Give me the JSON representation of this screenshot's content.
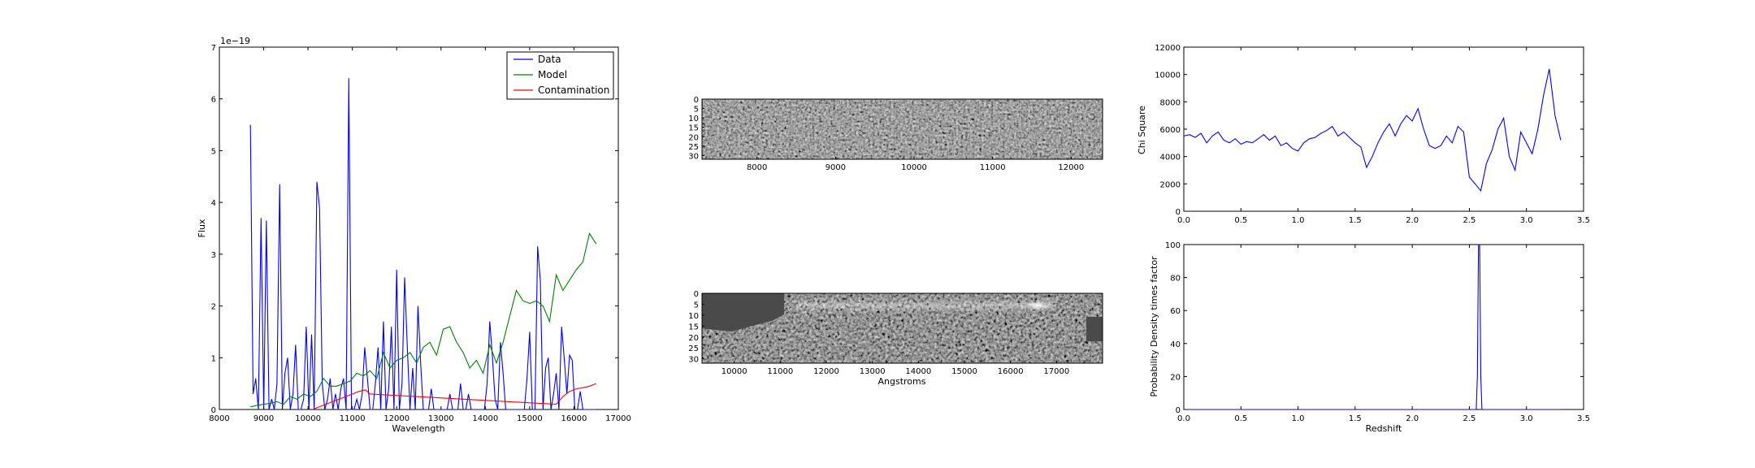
{
  "chart_data": [
    {
      "id": "spectrum",
      "type": "line",
      "xlabel": "Wavelength",
      "ylabel": "Flux",
      "offset_text": "1e−19",
      "xlim": [
        8000,
        17000
      ],
      "ylim": [
        0,
        7
      ],
      "xticks": [
        "8000",
        "9000",
        "10000",
        "11000",
        "12000",
        "13000",
        "14000",
        "15000",
        "16000",
        "17000"
      ],
      "yticks": [
        "0",
        "1",
        "2",
        "3",
        "4",
        "5",
        "6",
        "7"
      ],
      "legend_position": "top-right",
      "series": [
        {
          "name": "Data",
          "color": "#0000ff",
          "x": [
            8700,
            8760,
            8820,
            8880,
            8940,
            9000,
            9060,
            9120,
            9180,
            9240,
            9300,
            9360,
            9420,
            9480,
            9540,
            9600,
            9660,
            9720,
            9780,
            9840,
            9900,
            9960,
            10020,
            10080,
            10140,
            10200,
            10260,
            10320,
            10380,
            10440,
            10500,
            10560,
            10620,
            10680,
            10740,
            10800,
            10860,
            10920,
            10980,
            11040,
            11100,
            11160,
            11220,
            11280,
            11340,
            11400,
            11460,
            11520,
            11580,
            11640,
            11700,
            11760,
            11820,
            11880,
            11940,
            12000,
            12060,
            12120,
            12180,
            12240,
            12300,
            12360,
            12420,
            12480,
            12540,
            12600,
            12660,
            12720,
            12780,
            12840,
            12900,
            12960,
            13020,
            13080,
            13140,
            13200,
            13260,
            13320,
            13380,
            13440,
            13500,
            13560,
            13620,
            13680,
            13740,
            13800,
            13860,
            13920,
            13980,
            14040,
            14100,
            14160,
            14220,
            14280,
            14340,
            14400,
            14460,
            14520,
            14580,
            14640,
            14700,
            14760,
            14820,
            14880,
            14940,
            15000,
            15060,
            15120,
            15180,
            15240,
            15300,
            15360,
            15420,
            15480,
            15540,
            15600,
            15660,
            15720,
            15780,
            15840,
            15900,
            15960,
            16020,
            16080,
            16140,
            16200,
            16260,
            16320,
            16380,
            16440,
            16500
          ],
          "y": [
            5.5,
            0.3,
            0.6,
            0.0,
            3.7,
            0.0,
            3.65,
            0.0,
            0.2,
            0.0,
            0.5,
            4.35,
            0.0,
            0.7,
            1.0,
            0.0,
            0.3,
            1.25,
            0.0,
            0.0,
            0.2,
            1.6,
            0.0,
            1.45,
            0.0,
            4.4,
            3.9,
            0.5,
            0.0,
            0.2,
            0.6,
            0.0,
            0.3,
            0.0,
            0.4,
            0.6,
            0.0,
            6.4,
            0.0,
            0.0,
            0.2,
            0.0,
            0.3,
            1.2,
            0.6,
            0.0,
            0.0,
            0.5,
            1.2,
            0.0,
            1.7,
            0.0,
            0.4,
            1.6,
            0.0,
            2.7,
            0.0,
            0.5,
            2.55,
            1.2,
            0.0,
            0.8,
            0.0,
            2.0,
            0.9,
            0.0,
            0.0,
            0.0,
            0.4,
            0.0,
            0.0,
            0.0,
            0.0,
            0.0,
            0.0,
            0.3,
            0.0,
            0.0,
            0.0,
            0.5,
            0.0,
            0.0,
            0.3,
            0.0,
            0.0,
            0.0,
            0.0,
            0.0,
            0.0,
            0.5,
            1.7,
            1.0,
            0.2,
            0.0,
            1.3,
            0.7,
            0.0,
            0.0,
            0.0,
            0.0,
            0.0,
            0.0,
            0.0,
            0.0,
            0.6,
            1.5,
            0.0,
            0.0,
            3.15,
            2.5,
            0.0,
            0.8,
            1.0,
            0.0,
            0.3,
            0.7,
            0.0,
            1.6,
            1.0,
            0.3,
            1.05,
            0.95,
            0.0,
            0.0,
            0.35,
            0.0,
            0.0,
            0.0,
            0.0,
            0.0,
            0.0
          ]
        },
        {
          "name": "Model",
          "color": "#008000",
          "x": [
            8700,
            8850,
            9000,
            9150,
            9300,
            9450,
            9600,
            9750,
            9900,
            10050,
            10200,
            10350,
            10500,
            10650,
            10800,
            10950,
            11100,
            11250,
            11400,
            11550,
            11700,
            11850,
            12000,
            12150,
            12300,
            12450,
            12600,
            12750,
            12900,
            13050,
            13200,
            13350,
            13500,
            13650,
            13800,
            13950,
            14100,
            14250,
            14400,
            14550,
            14700,
            14850,
            15000,
            15150,
            15300,
            15450,
            15600,
            15750,
            15900,
            16050,
            16200,
            16350,
            16500
          ],
          "y": [
            0.05,
            0.08,
            0.1,
            0.12,
            0.15,
            0.1,
            0.25,
            0.2,
            0.3,
            0.25,
            0.35,
            0.6,
            0.45,
            0.45,
            0.5,
            0.55,
            0.7,
            0.65,
            0.75,
            0.6,
            1.1,
            0.8,
            0.95,
            1.0,
            1.1,
            0.9,
            1.2,
            1.3,
            1.05,
            1.55,
            1.6,
            1.3,
            1.1,
            0.8,
            0.95,
            0.7,
            1.25,
            0.9,
            1.3,
            1.8,
            2.3,
            2.1,
            2.05,
            2.1,
            2.0,
            1.7,
            2.6,
            2.3,
            2.5,
            2.7,
            2.85,
            3.4,
            3.2
          ]
        },
        {
          "name": "Contamination",
          "color": "#ff0000",
          "x": [
            10100,
            10250,
            10400,
            10550,
            10700,
            10850,
            11000,
            11150,
            11300,
            11400,
            15600,
            15750,
            15900,
            16050,
            16200,
            16350,
            16500
          ],
          "y": [
            0.0,
            0.05,
            0.1,
            0.15,
            0.2,
            0.25,
            0.3,
            0.35,
            0.38,
            0.3,
            0.1,
            0.25,
            0.35,
            0.4,
            0.42,
            0.45,
            0.5
          ]
        }
      ]
    },
    {
      "id": "chi-square",
      "type": "line",
      "xlabel": "",
      "ylabel": "Chi Square",
      "xlim": [
        0,
        3.5
      ],
      "ylim": [
        0,
        12000
      ],
      "xticks": [
        "0.0",
        "0.5",
        "1.0",
        "1.5",
        "2.0",
        "2.5",
        "3.0",
        "3.5"
      ],
      "yticks": [
        "0",
        "2000",
        "4000",
        "6000",
        "8000",
        "10000",
        "12000"
      ],
      "series": [
        {
          "color": "#0000ff",
          "x": [
            0.0,
            0.05,
            0.1,
            0.15,
            0.2,
            0.25,
            0.3,
            0.35,
            0.4,
            0.45,
            0.5,
            0.55,
            0.6,
            0.65,
            0.7,
            0.75,
            0.8,
            0.85,
            0.9,
            0.95,
            1.0,
            1.05,
            1.1,
            1.15,
            1.2,
            1.25,
            1.3,
            1.35,
            1.4,
            1.45,
            1.5,
            1.55,
            1.6,
            1.65,
            1.7,
            1.75,
            1.8,
            1.85,
            1.9,
            1.95,
            2.0,
            2.05,
            2.1,
            2.15,
            2.2,
            2.25,
            2.3,
            2.35,
            2.4,
            2.45,
            2.5,
            2.55,
            2.6,
            2.65,
            2.7,
            2.75,
            2.8,
            2.85,
            2.9,
            2.95,
            3.0,
            3.05,
            3.1,
            3.15,
            3.2,
            3.25,
            3.3
          ],
          "y": [
            5500,
            5600,
            5400,
            5700,
            5000,
            5500,
            5800,
            5200,
            5000,
            5300,
            4900,
            5100,
            5000,
            5300,
            5600,
            5200,
            5500,
            4800,
            5000,
            4600,
            4400,
            5000,
            5300,
            5400,
            5700,
            5900,
            6200,
            5500,
            5800,
            5400,
            5000,
            4700,
            3200,
            4000,
            5000,
            5800,
            6400,
            5500,
            6400,
            7000,
            6600,
            7500,
            6000,
            4800,
            4600,
            4800,
            5500,
            5000,
            6200,
            5800,
            2500,
            2000,
            1500,
            3500,
            4500,
            6000,
            6800,
            4000,
            3000,
            5800,
            5000,
            4200,
            6000,
            8500,
            10400,
            7000,
            5200
          ]
        }
      ]
    },
    {
      "id": "probability",
      "type": "line",
      "xlabel": "Redshift",
      "ylabel": "Probability Density times factor",
      "xlim": [
        0,
        3.5
      ],
      "ylim": [
        0,
        100
      ],
      "xticks": [
        "0.0",
        "0.5",
        "1.0",
        "1.5",
        "2.0",
        "2.5",
        "3.0",
        "3.5"
      ],
      "yticks": [
        "0",
        "20",
        "40",
        "60",
        "80",
        "100"
      ],
      "series": [
        {
          "color": "#0000ff",
          "x": [
            0.0,
            2.55,
            2.56,
            2.57,
            2.58,
            2.59,
            2.6,
            2.61,
            2.62,
            3.3
          ],
          "y": [
            0,
            0,
            0,
            20,
            100,
            100,
            20,
            0,
            0,
            0
          ]
        }
      ]
    },
    {
      "id": "image-2d-1",
      "type": "heatmap",
      "xlabel": "",
      "xticks": [
        "8000",
        "9000",
        "10000",
        "11000",
        "12000"
      ],
      "xlim": [
        7300,
        12400
      ],
      "yticks": [
        "0",
        "5",
        "10",
        "15",
        "20",
        "25",
        "30"
      ],
      "ylim": [
        0,
        32
      ]
    },
    {
      "id": "image-2d-2",
      "type": "heatmap",
      "xlabel": "Angstroms",
      "xticks": [
        "10000",
        "11000",
        "12000",
        "13000",
        "14000",
        "15000",
        "16000",
        "17000"
      ],
      "xlim": [
        9300,
        18000
      ],
      "yticks": [
        "0",
        "5",
        "10",
        "15",
        "20",
        "25",
        "30"
      ],
      "ylim": [
        0,
        32
      ]
    }
  ]
}
